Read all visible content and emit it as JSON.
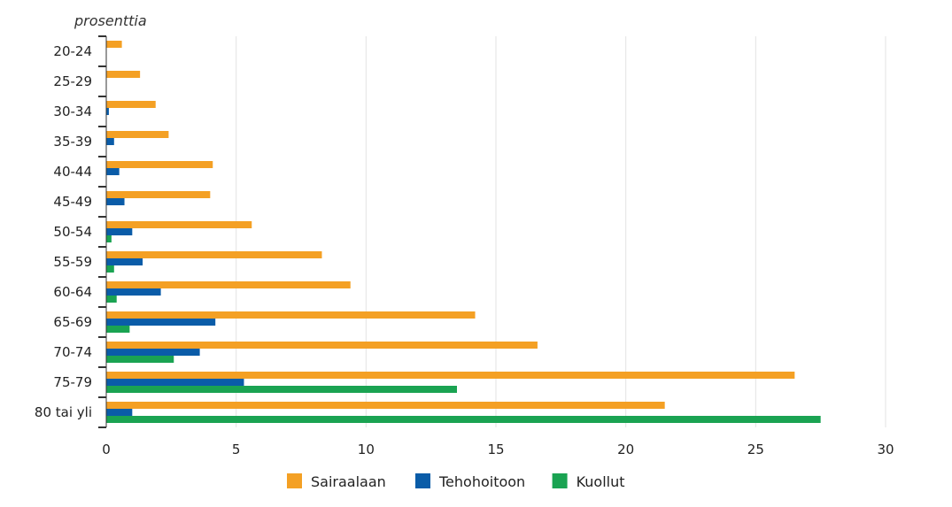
{
  "chart_data": {
    "type": "bar",
    "orientation": "horizontal",
    "title": "",
    "ylabel": "prosenttia",
    "xlabel": "",
    "xlim": [
      0,
      30
    ],
    "x_ticks": [
      0,
      5,
      10,
      15,
      20,
      25,
      30
    ],
    "grid": true,
    "legend_position": "bottom",
    "categories": [
      "20-24",
      "25-29",
      "30-34",
      "35-39",
      "40-44",
      "45-49",
      "50-54",
      "55-59",
      "60-64",
      "65-69",
      "70-74",
      "75-79",
      "80 tai yli"
    ],
    "series": [
      {
        "name": "Sairaalaan",
        "color": "#f4a024",
        "values": [
          0.6,
          1.3,
          1.9,
          2.4,
          4.1,
          4.0,
          5.6,
          8.3,
          9.4,
          14.2,
          16.6,
          26.5,
          21.5
        ]
      },
      {
        "name": "Tehohoitoon",
        "color": "#0a5ca8",
        "values": [
          0,
          0,
          0.1,
          0.3,
          0.5,
          0.7,
          1.0,
          1.4,
          2.1,
          4.2,
          3.6,
          5.3,
          1.0
        ]
      },
      {
        "name": "Kuollut",
        "color": "#1aa352",
        "values": [
          0,
          0,
          0,
          0,
          0,
          0,
          0.2,
          0.3,
          0.4,
          0.9,
          2.6,
          13.5,
          27.5
        ]
      }
    ]
  }
}
